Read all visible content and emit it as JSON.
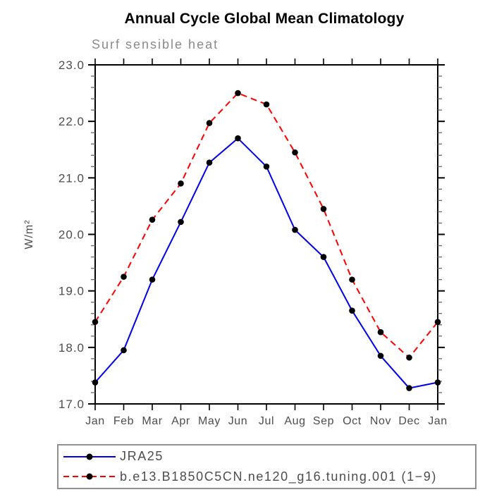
{
  "header": {
    "title": "Annual Cycle Global Mean Climatology",
    "subtitle": "Surf sensible heat"
  },
  "colors": {
    "title_text": "#000000",
    "subtitle_text": "#8a8a8a",
    "axis": "#000000",
    "tick_label": "#4d4d4d",
    "minor_tick": "#666666",
    "series_blue": "#0000ee",
    "series_red": "#ff0000",
    "marker": "#000000",
    "legend_border": "#909090"
  },
  "chart_data": {
    "type": "line",
    "title": "Annual Cycle Global Mean Climatology",
    "subtitle": "Surf sensible heat",
    "xlabel": "",
    "ylabel": "W/m²",
    "x_labels": [
      "Jan",
      "Feb",
      "Mar",
      "Apr",
      "May",
      "Jun",
      "Jul",
      "Aug",
      "Sep",
      "Oct",
      "Nov",
      "Dec",
      "Jan"
    ],
    "ylim": [
      17.0,
      23.0
    ],
    "y_major_step": 1.0,
    "y_minor_step": 0.2,
    "y_tick_labels": [
      "17.0",
      "18.0",
      "19.0",
      "20.0",
      "21.0",
      "22.0",
      "23.0"
    ],
    "grid": false,
    "legend_position": "bottom-left-box",
    "series": [
      {
        "name": "JRA25",
        "color": "#0000ee",
        "style": "solid",
        "marker": "circle",
        "marker_color": "#000000",
        "values": [
          17.38,
          17.95,
          19.2,
          20.22,
          21.27,
          21.7,
          21.2,
          20.08,
          19.6,
          18.65,
          17.85,
          17.28,
          17.38
        ]
      },
      {
        "name": "b.e13.B1850C5CN.ne120_g16.tuning.001 (1−9)",
        "color": "#ff0000",
        "style": "dashed",
        "marker": "circle",
        "marker_color": "#000000",
        "values": [
          18.45,
          19.25,
          20.26,
          20.9,
          21.97,
          22.5,
          22.3,
          21.45,
          20.45,
          19.2,
          18.27,
          17.82,
          18.45
        ]
      }
    ]
  }
}
